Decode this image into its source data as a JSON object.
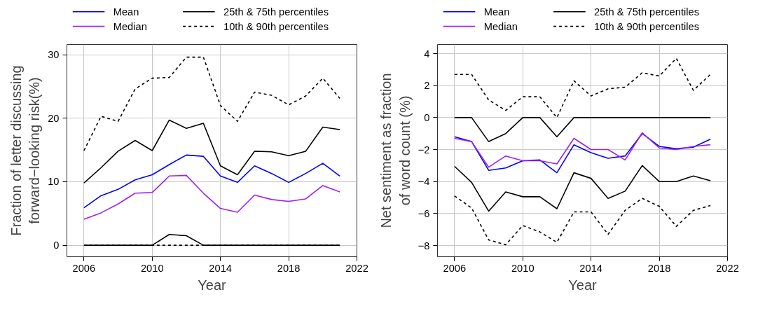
{
  "chart_data": [
    {
      "type": "line",
      "xlabel": "Year",
      "ylabel": "Fraction of letter discussing\nforward−looking risk(%)",
      "x": [
        2006,
        2007,
        2008,
        2009,
        2010,
        2011,
        2012,
        2013,
        2014,
        2015,
        2016,
        2017,
        2018,
        2019,
        2020,
        2021
      ],
      "xlim": [
        2005,
        2022
      ],
      "xticks": [
        2006,
        2010,
        2014,
        2018,
        2022
      ],
      "ylim": [
        -1.8,
        31.6
      ],
      "yticks": [
        0,
        10,
        20,
        30
      ],
      "grid": true,
      "legend": "top",
      "series": [
        {
          "name": "Mean",
          "color": "#0000ff",
          "line_style": "solid",
          "values": [
            5.9,
            7.8,
            8.8,
            10.3,
            11.1,
            12.7,
            14.2,
            14.0,
            10.9,
            9.9,
            12.5,
            11.3,
            9.9,
            11.3,
            12.9,
            10.9
          ]
        },
        {
          "name": "Median",
          "color": "#a020f0",
          "line_style": "solid",
          "values": [
            4.1,
            5.1,
            6.5,
            8.2,
            8.3,
            10.9,
            11.0,
            8.2,
            5.8,
            5.2,
            7.9,
            7.2,
            6.9,
            7.3,
            9.4,
            8.4
          ]
        },
        {
          "name": "25th & 75th percentiles",
          "color": "#000000",
          "line_style": "solid",
          "values": [
            0,
            0,
            0,
            0,
            0,
            1.7,
            1.5,
            0,
            0,
            0,
            0,
            0,
            0,
            0,
            0,
            0
          ]
        },
        {
          "color": "#000000",
          "line_style": "solid",
          "values": [
            9.8,
            12.2,
            14.8,
            16.5,
            14.9,
            19.7,
            18.4,
            19.2,
            12.5,
            11.1,
            14.8,
            14.7,
            14.1,
            14.8,
            18.6,
            18.2
          ]
        },
        {
          "name": "10th & 90th percentiles",
          "color": "#000000",
          "line_style": "dashed",
          "values": [
            0,
            0,
            0,
            0,
            0,
            0,
            0,
            0,
            0,
            0,
            0,
            0,
            0,
            0,
            0,
            0
          ]
        },
        {
          "color": "#000000",
          "line_style": "dashed",
          "values": [
            14.9,
            20.3,
            19.5,
            24.6,
            26.3,
            26.4,
            29.6,
            29.6,
            22.0,
            19.5,
            24.1,
            23.6,
            22.1,
            23.5,
            26.3,
            23.1
          ]
        }
      ]
    },
    {
      "type": "line",
      "xlabel": "Year",
      "ylabel": "Net sentiment as fraction\nof word count (%)",
      "x": [
        2006,
        2007,
        2008,
        2009,
        2010,
        2011,
        2012,
        2013,
        2014,
        2015,
        2016,
        2017,
        2018,
        2019,
        2020,
        2021
      ],
      "xlim": [
        2005,
        2022
      ],
      "xticks": [
        2006,
        2010,
        2014,
        2018,
        2022
      ],
      "ylim": [
        -8.7,
        4.57
      ],
      "yticks": [
        -8,
        -6,
        -4,
        -2,
        0,
        2,
        4
      ],
      "grid": true,
      "legend": "top",
      "series": [
        {
          "name": "Mean",
          "color": "#0000ff",
          "line_style": "solid",
          "values": [
            -1.2,
            -1.5,
            -3.3,
            -3.15,
            -2.7,
            -2.65,
            -3.45,
            -1.7,
            -2.2,
            -2.55,
            -2.4,
            -1.0,
            -1.8,
            -1.95,
            -1.85,
            -1.35
          ]
        },
        {
          "name": "Median",
          "color": "#a020f0",
          "line_style": "solid",
          "values": [
            -1.3,
            -1.5,
            -3.1,
            -2.4,
            -2.7,
            -2.7,
            -2.9,
            -1.3,
            -2.0,
            -2.0,
            -2.65,
            -0.95,
            -1.9,
            -2.0,
            -1.8,
            -1.7
          ]
        },
        {
          "name": "25th & 75th percentiles",
          "color": "#000000",
          "line_style": "solid",
          "values": [
            -3.05,
            -4.05,
            -5.85,
            -4.65,
            -4.95,
            -4.95,
            -5.7,
            -3.45,
            -3.8,
            -5.05,
            -4.6,
            -3.0,
            -4.0,
            -4.0,
            -3.65,
            -3.95
          ]
        },
        {
          "color": "#000000",
          "line_style": "solid",
          "values": [
            0,
            0,
            -1.5,
            -1.0,
            0,
            0,
            -1.2,
            0,
            0,
            0,
            0,
            0,
            0,
            0,
            0,
            0
          ]
        },
        {
          "name": "10th & 90th percentiles",
          "color": "#000000",
          "line_style": "dashed",
          "values": [
            -4.9,
            -5.65,
            -7.65,
            -7.95,
            -6.75,
            -7.15,
            -7.8,
            -5.9,
            -5.9,
            -7.3,
            -5.8,
            -5.05,
            -5.55,
            -6.8,
            -5.8,
            -5.5
          ]
        },
        {
          "color": "#000000",
          "line_style": "dashed",
          "values": [
            2.7,
            2.7,
            1.1,
            0.45,
            1.3,
            1.3,
            0.0,
            2.3,
            1.35,
            1.8,
            1.9,
            2.8,
            2.6,
            3.7,
            1.7,
            2.7
          ]
        }
      ]
    }
  ]
}
